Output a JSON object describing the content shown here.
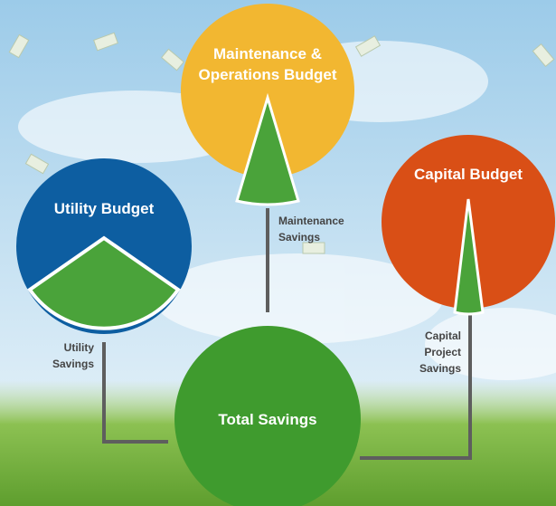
{
  "nodes": [
    {
      "label": [
        "Maintenance &",
        "Operations Budget"
      ]
    },
    {
      "label": [
        "Utility Budget"
      ]
    },
    {
      "label": [
        "Capital Budget"
      ]
    },
    {
      "label": [
        "Total Savings"
      ]
    }
  ],
  "flows": [
    {
      "label": [
        "Maintenance",
        "Savings"
      ]
    },
    {
      "label": [
        "Utility",
        "Savings"
      ]
    },
    {
      "label": [
        "Capital",
        "Project",
        "Savings"
      ]
    }
  ]
}
